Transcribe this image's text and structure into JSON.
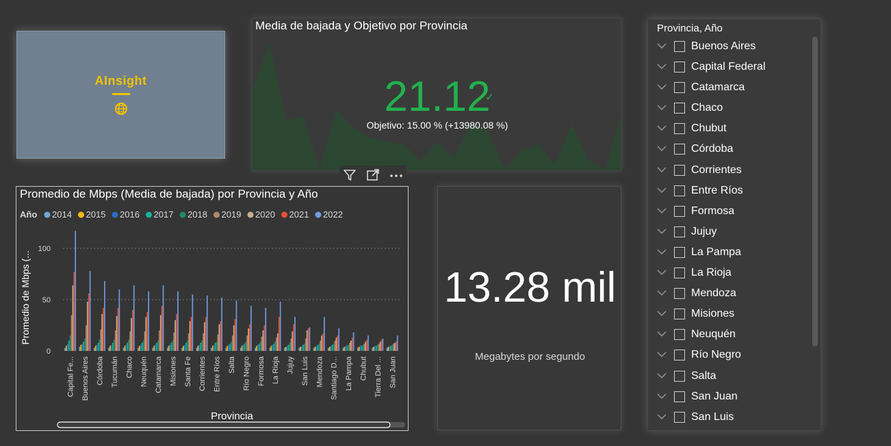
{
  "logo": {
    "text": "AInsight",
    "icon": "globe-icon",
    "bg_color": "#708090",
    "accent": "#f2c200"
  },
  "kpi_download": {
    "title": "Media de bajada y Objetivo por Provincia",
    "value": "21.12",
    "status_icon": "check-icon",
    "goal_text": "Objetivo: 15.00 % (+13980.08 %)",
    "value_color": "#22b14c",
    "trend_color": "#2a4a30",
    "trend": [
      60,
      95,
      38,
      40,
      2,
      45,
      32,
      25,
      22,
      20,
      8,
      22,
      10,
      35,
      30,
      2,
      15,
      20,
      5,
      35,
      8,
      2,
      45
    ]
  },
  "visual_toolbar": {
    "filter": "filter-icon",
    "focus": "focus-mode-icon",
    "more": "more-options-icon"
  },
  "bar_chart": {
    "title": "Promedio de Mbps (Media de bajada) por Provincia y Año",
    "legend_title": "Año"
  },
  "chart_data": {
    "type": "bar",
    "title": "Promedio de Mbps (Media de bajada) por Provincia y Año",
    "xlabel": "Provincia",
    "ylabel": "Promedio de Mbps (...",
    "ylim": [
      0,
      120
    ],
    "yticks": [
      0,
      50,
      100
    ],
    "grid": true,
    "legend_position": "top-left",
    "categories": [
      "Capital Fe...",
      "Buenos Aires",
      "Córdoba",
      "Tucumán",
      "Chaco",
      "Neuquén",
      "Catamarca",
      "Misiones",
      "Santa Fe",
      "Corrientes",
      "Entre Ríos",
      "Salta",
      "Río Negro",
      "Formosa",
      "La Rioja",
      "Jujuy",
      "San Luis",
      "Mendoza",
      "Santiago D...",
      "La Pampa",
      "Chubut",
      "Tierra Del ...",
      "San Juan"
    ],
    "series": [
      {
        "name": "2014",
        "color": "#6ea8dc",
        "values": [
          3,
          4,
          3,
          3,
          3,
          3,
          3,
          3,
          3,
          3,
          3,
          3,
          3,
          3,
          3,
          3,
          3,
          3,
          3,
          3,
          3,
          3,
          3
        ]
      },
      {
        "name": "2015",
        "color": "#f6b913",
        "values": [
          5,
          6,
          5,
          5,
          5,
          5,
          5,
          5,
          5,
          5,
          5,
          5,
          5,
          5,
          5,
          4,
          4,
          4,
          4,
          4,
          4,
          4,
          4
        ]
      },
      {
        "name": "2016",
        "color": "#2e6ec5",
        "values": [
          7,
          7,
          6,
          6,
          6,
          6,
          6,
          6,
          6,
          6,
          6,
          6,
          6,
          6,
          6,
          5,
          5,
          5,
          5,
          5,
          5,
          5,
          5
        ]
      },
      {
        "name": "2017",
        "color": "#14b39a",
        "values": [
          10,
          9,
          8,
          8,
          8,
          8,
          8,
          8,
          8,
          8,
          8,
          7,
          7,
          7,
          7,
          6,
          6,
          6,
          6,
          5,
          5,
          5,
          5
        ]
      },
      {
        "name": "2018",
        "color": "#1e8a6e",
        "values": [
          15,
          12,
          11,
          11,
          11,
          10,
          10,
          10,
          10,
          10,
          9,
          9,
          9,
          9,
          9,
          8,
          7,
          7,
          7,
          6,
          6,
          6,
          6
        ]
      },
      {
        "name": "2019",
        "color": "#b08a6a",
        "values": [
          35,
          25,
          21,
          20,
          19,
          19,
          20,
          18,
          17,
          17,
          16,
          15,
          15,
          14,
          13,
          12,
          12,
          10,
          10,
          8,
          7,
          7,
          7
        ]
      },
      {
        "name": "2020",
        "color": "#c8b08a",
        "values": [
          64,
          48,
          36,
          34,
          32,
          33,
          35,
          30,
          29,
          28,
          26,
          25,
          22,
          20,
          17,
          19,
          20,
          15,
          13,
          10,
          9,
          9,
          8
        ]
      },
      {
        "name": "2021",
        "color": "#e8503a",
        "values": [
          77,
          56,
          42,
          42,
          40,
          38,
          44,
          36,
          33,
          33,
          29,
          31,
          26,
          25,
          33,
          26,
          22,
          17,
          15,
          13,
          11,
          11,
          9
        ]
      },
      {
        "name": "2022",
        "color": "#6e9ce0",
        "values": [
          117,
          78,
          68,
          60,
          64,
          58,
          64,
          58,
          55,
          54,
          52,
          49,
          44,
          42,
          48,
          33,
          23,
          33,
          22,
          18,
          15,
          12,
          15
        ]
      }
    ]
  },
  "kpi_mbps": {
    "value": "13.28 mil",
    "label": "Megabytes por segundo"
  },
  "slicer": {
    "header": "Provincia, Año",
    "items": [
      "Buenos Aires",
      "Capital Federal",
      "Catamarca",
      "Chaco",
      "Chubut",
      "Córdoba",
      "Corrientes",
      "Entre Ríos",
      "Formosa",
      "Jujuy",
      "La Pampa",
      "La Rioja",
      "Mendoza",
      "Misiones",
      "Neuquén",
      "Río Negro",
      "Salta",
      "San Juan",
      "San Luis"
    ]
  }
}
